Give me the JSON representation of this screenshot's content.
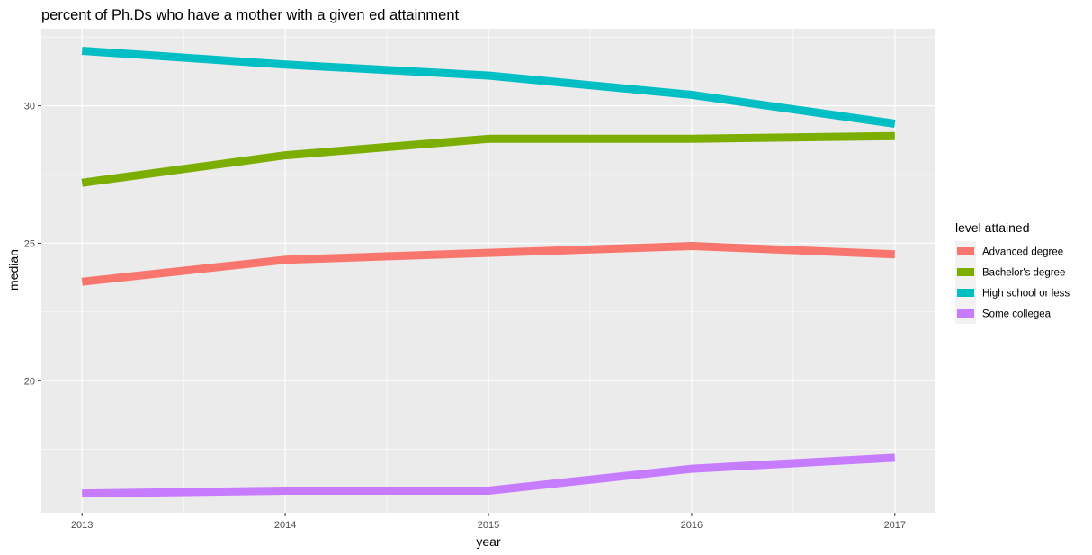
{
  "chart_data": {
    "type": "line",
    "title": "percent of Ph.Ds who have a mother with a given ed attainment",
    "xlabel": "year",
    "ylabel": "median",
    "x": [
      2013,
      2014,
      2015,
      2016,
      2017
    ],
    "x_ticks": [
      "2013",
      "2014",
      "2015",
      "2016",
      "2017"
    ],
    "y_ticks": [
      "20",
      "25",
      "30"
    ],
    "xlim": [
      2012.8,
      2017.2
    ],
    "ylim": [
      15.2,
      32.8
    ],
    "grid": true,
    "legend": {
      "title": "level attained",
      "placement": "right"
    },
    "series": [
      {
        "name": "Advanced degree",
        "color": "#F8766D",
        "values": [
          23.6,
          24.4,
          24.65,
          24.9,
          24.6
        ]
      },
      {
        "name": "Bachelor's degree",
        "color": "#7CAE00",
        "values": [
          27.2,
          28.2,
          28.8,
          28.8,
          28.9
        ]
      },
      {
        "name": "High school or less",
        "color": "#00BFC4",
        "values": [
          32.0,
          31.5,
          31.1,
          30.4,
          29.35
        ]
      },
      {
        "name": "Some collegea",
        "color": "#C77CFF",
        "values": [
          15.9,
          16.0,
          16.0,
          16.8,
          17.2
        ]
      }
    ]
  }
}
